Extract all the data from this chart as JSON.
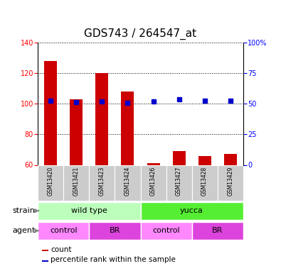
{
  "title": "GDS743 / 264547_at",
  "samples": [
    "GSM13420",
    "GSM13421",
    "GSM13423",
    "GSM13424",
    "GSM13426",
    "GSM13427",
    "GSM13428",
    "GSM13429"
  ],
  "counts": [
    128,
    103,
    120,
    108,
    61,
    69,
    66,
    67
  ],
  "percentile_ranks": [
    52.5,
    51.5,
    52,
    51,
    52,
    53.5,
    52.5,
    52.5
  ],
  "ylim_left": [
    60,
    140
  ],
  "ylim_right": [
    0,
    100
  ],
  "yticks_left": [
    60,
    80,
    100,
    120,
    140
  ],
  "yticks_right": [
    0,
    25,
    50,
    75,
    100
  ],
  "bar_color": "#cc0000",
  "dot_color": "#0000cc",
  "strain_groups": [
    {
      "label": "wild type",
      "start": 0,
      "end": 4,
      "color": "#bbffbb"
    },
    {
      "label": "yucca",
      "start": 4,
      "end": 8,
      "color": "#55ee33"
    }
  ],
  "agent_groups": [
    {
      "label": "control",
      "start": 0,
      "end": 2,
      "color": "#ff88ff"
    },
    {
      "label": "BR",
      "start": 2,
      "end": 4,
      "color": "#dd44dd"
    },
    {
      "label": "control",
      "start": 4,
      "end": 6,
      "color": "#ff88ff"
    },
    {
      "label": "BR",
      "start": 6,
      "end": 8,
      "color": "#dd44dd"
    }
  ],
  "legend_count_color": "#cc0000",
  "legend_pct_color": "#0000cc",
  "sample_bg_color": "#cccccc",
  "bar_width": 0.5,
  "tick_fontsize": 7,
  "sample_fontsize": 5.5,
  "label_fontsize": 8,
  "title_fontsize": 11,
  "legend_fontsize": 7.5
}
